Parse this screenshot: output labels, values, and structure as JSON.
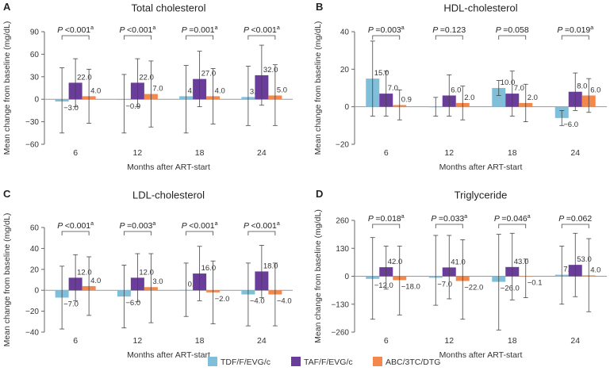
{
  "chart_data": [
    {
      "panel_letter": "A",
      "type": "bar",
      "title": "Total cholesterol",
      "xlabel": "Months after ART-start",
      "ylabel": "Mean change from baseline (mg/dL)",
      "ylim": [
        -60,
        90
      ],
      "yticks": [
        -60,
        -30,
        0,
        30,
        60,
        90
      ],
      "categories": [
        "6",
        "12",
        "18",
        "24"
      ],
      "series": [
        {
          "name": "TDF/F/EVG/c",
          "values": [
            -3.0,
            -0.9,
            4.0,
            3.0
          ],
          "err_low": [
            -45,
            -45,
            -45,
            -35
          ],
          "err_high": [
            42,
            33,
            45,
            44
          ],
          "labels": [
            "−3.0",
            "−0.9",
            "4.0",
            "3.0"
          ]
        },
        {
          "name": "TAF/F/EVG/c",
          "values": [
            22.0,
            22.0,
            27.0,
            32.0
          ],
          "err_low": [
            -10,
            -10,
            -10,
            -8
          ],
          "err_high": [
            54,
            54,
            64,
            72
          ],
          "labels": [
            "22.0",
            "22.0",
            "27.0",
            "32.0"
          ]
        },
        {
          "name": "ABC/3TC/DTG",
          "values": [
            4.0,
            7.0,
            4.0,
            5.0
          ],
          "err_low": [
            -32,
            -37,
            -33,
            -35
          ],
          "err_high": [
            40,
            51,
            41,
            46
          ],
          "labels": [
            "4.0",
            "7.0",
            "4.0",
            "5.0"
          ]
        }
      ],
      "p_values": [
        {
          "prefix": "P ",
          "value": "<0.001",
          "sup": "a"
        },
        {
          "prefix": "P ",
          "value": "<0.001",
          "sup": "a"
        },
        {
          "prefix": "P ",
          "value": "=0.001",
          "sup": "a"
        },
        {
          "prefix": "P ",
          "value": "<0.001",
          "sup": "a"
        }
      ]
    },
    {
      "panel_letter": "B",
      "type": "bar",
      "title": "HDL-cholesterol",
      "xlabel": "Months after ART-start",
      "ylabel": "Mean change from baseline (mg/dL)",
      "ylim": [
        -20,
        40
      ],
      "yticks": [
        -20,
        0,
        20,
        40
      ],
      "categories": [
        "6",
        "12",
        "18",
        "24"
      ],
      "series": [
        {
          "name": "TDF/F/EVG/c",
          "values": [
            15.0,
            0.0,
            10.0,
            -6.0
          ],
          "err_low": [
            -5,
            -5,
            6,
            -10
          ],
          "err_high": [
            35,
            5,
            14,
            -2
          ],
          "labels": [
            "15.0",
            "",
            "10.0",
            "−6.0"
          ]
        },
        {
          "name": "TAF/F/EVG/c",
          "values": [
            7.0,
            6.0,
            7.0,
            8.0
          ],
          "err_low": [
            -5,
            -5,
            -5,
            -2
          ],
          "err_high": [
            19,
            17,
            19,
            18
          ],
          "labels": [
            "7.0",
            "6.0",
            "7.0",
            "8.0"
          ]
        },
        {
          "name": "ABC/3TC/DTG",
          "values": [
            0.9,
            2.0,
            2.0,
            6.0
          ],
          "err_low": [
            -7,
            -7,
            -8,
            -3
          ],
          "err_high": [
            9,
            11,
            12,
            15
          ],
          "labels": [
            "0.9",
            "2.0",
            "2.0",
            "6.0"
          ]
        }
      ],
      "p_values": [
        {
          "prefix": "P ",
          "value": "=0.003",
          "sup": "a"
        },
        {
          "prefix": "P ",
          "value": "=0.123",
          "sup": ""
        },
        {
          "prefix": "P ",
          "value": "=0.058",
          "sup": ""
        },
        {
          "prefix": "P ",
          "value": "=0.019",
          "sup": "a"
        }
      ]
    },
    {
      "panel_letter": "C",
      "type": "bar",
      "title": "LDL-cholesterol",
      "xlabel": "Months after ART-start",
      "ylabel": "Mean change from baseline (mg/dL)",
      "ylim": [
        -40,
        60
      ],
      "yticks": [
        -40,
        -20,
        0,
        20,
        40,
        60
      ],
      "categories": [
        "6",
        "12",
        "18",
        "24"
      ],
      "series": [
        {
          "name": "TDF/F/EVG/c",
          "values": [
            -7.0,
            -6.0,
            0.5,
            -4.0
          ],
          "err_low": [
            -37,
            -36,
            -25,
            -34
          ],
          "err_high": [
            23,
            24,
            26,
            26
          ],
          "labels": [
            "−7.0",
            "−6.0",
            "0.5",
            "−4.0"
          ]
        },
        {
          "name": "TAF/F/EVG/c",
          "values": [
            12.0,
            12.0,
            16.0,
            18.0
          ],
          "err_low": [
            -10,
            -11,
            -10,
            -7
          ],
          "err_high": [
            34,
            35,
            42,
            43
          ],
          "labels": [
            "12.0",
            "12.0",
            "16.0",
            "18.0"
          ]
        },
        {
          "name": "ABC/3TC/DTG",
          "values": [
            4.0,
            3.0,
            -2.0,
            -4.0
          ],
          "err_low": [
            -24,
            -31,
            -32,
            -34
          ],
          "err_high": [
            32,
            35,
            28,
            26
          ],
          "labels": [
            "4.0",
            "3.0",
            "−2.0",
            "−4.0"
          ]
        }
      ],
      "p_values": [
        {
          "prefix": "P ",
          "value": "<0.001",
          "sup": "a"
        },
        {
          "prefix": "P ",
          "value": "=0.003",
          "sup": "a"
        },
        {
          "prefix": "P ",
          "value": "<0.001",
          "sup": "a"
        },
        {
          "prefix": "P ",
          "value": "<0.001",
          "sup": "a"
        }
      ]
    },
    {
      "panel_letter": "D",
      "type": "bar",
      "title": "Triglyceride",
      "xlabel": "Months after ART-start",
      "ylabel": "Mean change from baseline (mg/dL)",
      "ylim": [
        -260,
        260
      ],
      "yticks": [
        -260,
        -130,
        0,
        130,
        260
      ],
      "categories": [
        "6",
        "12",
        "18",
        "24"
      ],
      "series": [
        {
          "name": "TDF/F/EVG/c",
          "values": [
            -12.0,
            -7.0,
            -26.0,
            7.0
          ],
          "err_low": [
            -200,
            -135,
            -250,
            -130
          ],
          "err_high": [
            180,
            190,
            195,
            140
          ],
          "labels": [
            "−12.0",
            "−7.0",
            "−26.0",
            "7.0"
          ]
        },
        {
          "name": "TAF/F/EVG/c",
          "values": [
            42.0,
            41.0,
            43.0,
            53.0
          ],
          "err_low": [
            -60,
            -105,
            -110,
            -95
          ],
          "err_high": [
            140,
            190,
            200,
            200
          ],
          "labels": [
            "42.0",
            "41.0",
            "43.0",
            "53.0"
          ]
        },
        {
          "name": "ABC/3TC/DTG",
          "values": [
            -18.0,
            -22.0,
            -0.1,
            4.0
          ],
          "err_low": [
            -180,
            -200,
            -100,
            -165
          ],
          "err_high": [
            140,
            170,
            80,
            175
          ],
          "labels": [
            "−18.0",
            "−22.0",
            "−0.1",
            "4.0"
          ]
        }
      ],
      "p_values": [
        {
          "prefix": "P ",
          "value": "=0.018",
          "sup": "a"
        },
        {
          "prefix": "P ",
          "value": "=0.033",
          "sup": "a"
        },
        {
          "prefix": "P ",
          "value": "=0.046",
          "sup": "a"
        },
        {
          "prefix": "P ",
          "value": "=0.062",
          "sup": ""
        }
      ]
    }
  ],
  "legend": [
    {
      "label": "TDF/F/EVG/c",
      "color": "#7fbfda"
    },
    {
      "label": "TAF/F/EVG/c",
      "color": "#6a3d9a"
    },
    {
      "label": "ABC/3TC/DTG",
      "color": "#f4874b"
    }
  ]
}
